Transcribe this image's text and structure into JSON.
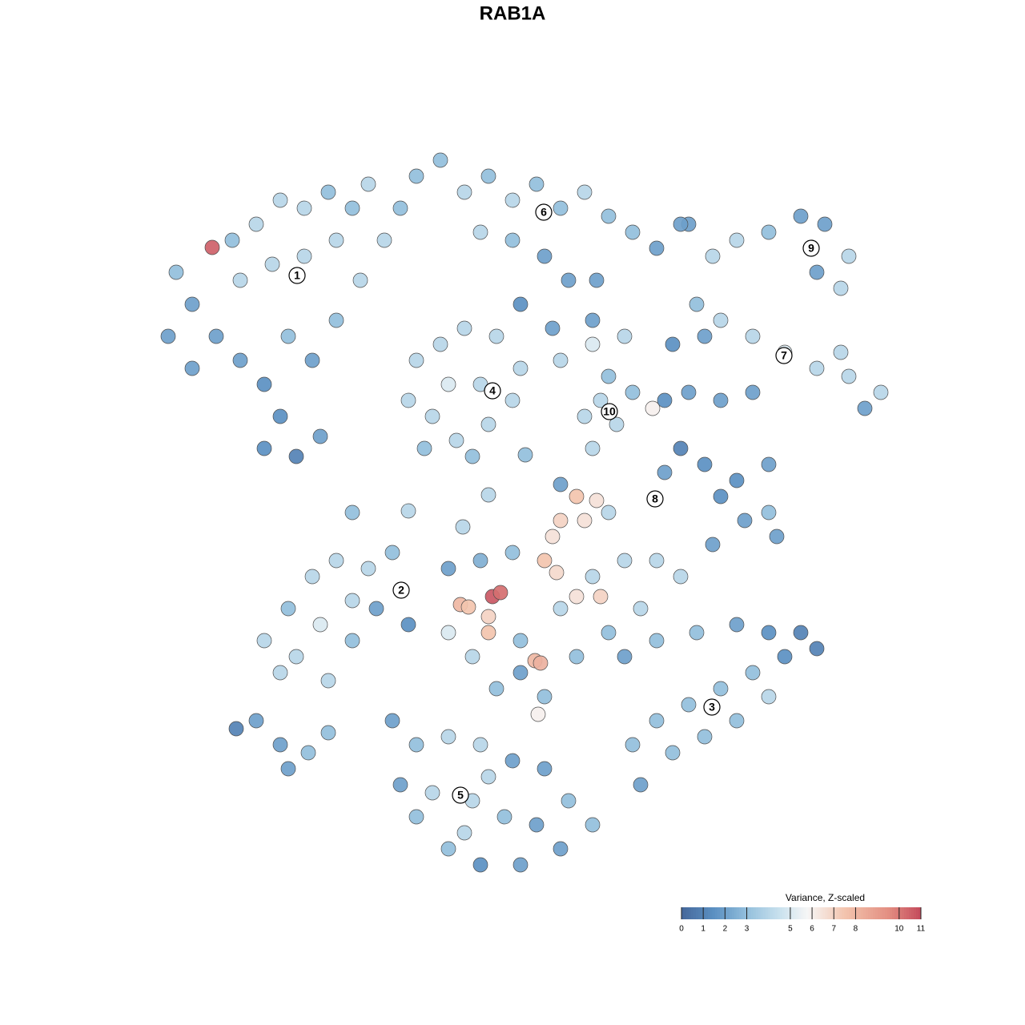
{
  "chart_data": {
    "type": "scatter",
    "title": "RAB1A",
    "x": [
      -42,
      -40,
      -37.5,
      -35,
      -32,
      -29,
      -26,
      -23,
      -34,
      -30,
      -26,
      -22,
      -20,
      -37,
      -34,
      -31,
      -29,
      -31,
      -27,
      -24,
      -28,
      -25,
      -22,
      -19,
      -16,
      -14,
      -12,
      -9,
      -18,
      -40,
      -43,
      -6,
      -3,
      0,
      3,
      6,
      9,
      12,
      15,
      18,
      -4,
      0,
      4,
      7,
      1,
      5,
      22,
      25,
      28,
      32,
      36,
      39,
      42,
      41,
      38,
      23,
      26,
      30,
      34,
      38,
      42,
      46,
      44,
      41,
      24,
      20,
      -12,
      -9,
      -6,
      -2,
      1,
      0,
      -3,
      -7,
      -11,
      -13,
      -8,
      -4,
      -10,
      -5,
      6,
      10,
      14,
      12,
      15,
      11,
      13,
      9,
      17.5,
      19,
      22,
      26,
      30,
      21,
      24,
      19,
      26,
      29,
      32,
      25,
      33,
      28,
      32,
      8,
      10.5,
      6,
      9,
      5,
      12,
      4,
      5.5,
      8,
      11,
      -31,
      -28,
      -25,
      -22,
      -18,
      -15,
      -20,
      -24,
      -27,
      -23,
      -20,
      -29,
      -13,
      -17,
      -8,
      -4,
      0,
      -2.5,
      -1.5,
      -6.5,
      -5.5,
      -3,
      -3,
      -8,
      -5,
      1,
      6,
      10,
      14,
      18,
      21,
      16,
      12,
      2.8,
      3.5,
      -2,
      4,
      3.2,
      8,
      1,
      14,
      18,
      23,
      28,
      32,
      36,
      38,
      34,
      30,
      26,
      32,
      22,
      18,
      15,
      20,
      24,
      16,
      28,
      -15,
      -12,
      -8,
      -4,
      0,
      4,
      7,
      10,
      6,
      1,
      -4,
      -8,
      -12,
      -14,
      -10,
      -5,
      -1,
      3,
      -3,
      -6,
      -34.5,
      -32,
      -29,
      -28,
      -25.5,
      -23,
      -20,
      -13,
      -6.2,
      -3,
      1.6,
      10,
      10,
      21,
      10.5,
      6
    ],
    "y": [
      30,
      26,
      33.1,
      34,
      36,
      39,
      38,
      40,
      29,
      31,
      32,
      34,
      38,
      22,
      19,
      16,
      12,
      8,
      7,
      9.5,
      22,
      19,
      24,
      29,
      34,
      38,
      42,
      44,
      41,
      18,
      22,
      40,
      42,
      39,
      41,
      38,
      40,
      37,
      35,
      33,
      35,
      34,
      32,
      29,
      26,
      23,
      36,
      32,
      34,
      35,
      37,
      36,
      32,
      28,
      30,
      26,
      24,
      22,
      20,
      18,
      17,
      15,
      13,
      20,
      22,
      21,
      19,
      21,
      23,
      22,
      18,
      14,
      11,
      9,
      8,
      14,
      16,
      16,
      12,
      7,
      19,
      21,
      22,
      17,
      15,
      14,
      11,
      12,
      13,
      14,
      15,
      14,
      15,
      8,
      6,
      5,
      2,
      -1,
      0,
      -4,
      -3,
      4,
      6,
      2,
      1.5,
      -1,
      -1,
      -3,
      0,
      -6,
      -7.5,
      -10.5,
      -10.5,
      -16,
      -12,
      -8,
      -6,
      -7,
      -5,
      -11,
      -14,
      -18,
      -21,
      -16,
      -20,
      -14,
      -12,
      -7,
      -6,
      -5,
      -10.5,
      -10,
      -11.5,
      -11.8,
      -13,
      -15,
      -15,
      -18,
      -16,
      -12,
      -8,
      -6,
      -6,
      -8,
      -12,
      -15,
      -18.5,
      -18.8,
      -22,
      -23,
      -25.2,
      -18,
      -20,
      -18,
      -16,
      -15,
      -14,
      -15,
      -15,
      -17,
      -18,
      -20,
      -22,
      -23,
      -24,
      -26,
      -29,
      -30,
      -28,
      -34,
      -26,
      -26,
      -29,
      -28,
      -29,
      -31,
      -32,
      -36,
      -39,
      -42,
      -44,
      -44,
      -42,
      -38,
      -34,
      -35,
      -36,
      -38,
      -39,
      -33,
      -40,
      -27,
      -26,
      -29,
      -32,
      -30,
      -27.5,
      0,
      0.2,
      -1.8,
      2.2,
      7.2,
      8,
      24,
      36,
      29,
      3.5
    ],
    "values": [
      3,
      2,
      10.5,
      3,
      4,
      4,
      4,
      3,
      4,
      4,
      4,
      4,
      3,
      2,
      2,
      1.5,
      1.5,
      1.5,
      1,
      2,
      3,
      2,
      3,
      4,
      4,
      3,
      3,
      3,
      4,
      2,
      2,
      4,
      3,
      4,
      3,
      3,
      4,
      3,
      3,
      2,
      4,
      3,
      2,
      2,
      1.5,
      2,
      2,
      4,
      4,
      3,
      2,
      2,
      4,
      4,
      2,
      3,
      4,
      4,
      5,
      4,
      4,
      4,
      2,
      4,
      2,
      1.5,
      4,
      4,
      4,
      4,
      4,
      4,
      4,
      4,
      3,
      4,
      5,
      4,
      4,
      3,
      4,
      5,
      4,
      3,
      3,
      4,
      4,
      4,
      6,
      1.5,
      2,
      2,
      2,
      1,
      1.5,
      2,
      1.5,
      2,
      3,
      2,
      2,
      1.5,
      2,
      7.5,
      6.5,
      7,
      6.5,
      6.5,
      4,
      7.5,
      6.8,
      6.5,
      7,
      4,
      3,
      4,
      4,
      4,
      3,
      4,
      5,
      4,
      4,
      3,
      4,
      1.5,
      2,
      2,
      2.5,
      3,
      10.7,
      10.2,
      8,
      7.5,
      7,
      7.5,
      5,
      4,
      3,
      4,
      4,
      4,
      4,
      4,
      4,
      3,
      8,
      8.2,
      3,
      3,
      6,
      3,
      2,
      2,
      3,
      3,
      2,
      1.5,
      1,
      1,
      1.5,
      3,
      3,
      4,
      3,
      3,
      3,
      3,
      3,
      2,
      3,
      2,
      3,
      4,
      4,
      2,
      2,
      3,
      3,
      2,
      2,
      1.5,
      3,
      3,
      2,
      4,
      4,
      3,
      2,
      4,
      4,
      1,
      2,
      2,
      2,
      3,
      3,
      3,
      4,
      4,
      4,
      3,
      4,
      2,
      2,
      2,
      2
    ],
    "xlim": [
      -45,
      50
    ],
    "ylim": [
      -47,
      47
    ],
    "annotations": [
      {
        "text": "1",
        "x": -26.9,
        "y": 29.6
      },
      {
        "text": "2",
        "x": -13.9,
        "y": -9.7
      },
      {
        "text": "3",
        "x": 24.9,
        "y": -24.3
      },
      {
        "text": "4",
        "x": -2.5,
        "y": 15.2
      },
      {
        "text": "5",
        "x": -6.5,
        "y": -35.3
      },
      {
        "text": "6",
        "x": 3.9,
        "y": 37.5
      },
      {
        "text": "7",
        "x": 33.9,
        "y": 19.6
      },
      {
        "text": "8",
        "x": 17.8,
        "y": 1.7
      },
      {
        "text": "9",
        "x": 37.3,
        "y": 33
      },
      {
        "text": "10",
        "x": 12.1,
        "y": 12.6
      }
    ],
    "colorbar": {
      "title": "Variance, Z-scaled",
      "lim": [
        0,
        11
      ],
      "ticks": [
        0,
        1,
        2,
        3,
        5,
        6,
        7,
        8,
        10,
        11
      ],
      "stops": [
        [
          0,
          "#46679b"
        ],
        [
          1.5,
          "#5b90c2"
        ],
        [
          3,
          "#93bfdc"
        ],
        [
          4.5,
          "#c9e1ee"
        ],
        [
          5.8,
          "#f6f6f6"
        ],
        [
          7.5,
          "#f3c4ae"
        ],
        [
          9.5,
          "#e38f82"
        ],
        [
          11,
          "#c44a5c"
        ]
      ]
    }
  }
}
